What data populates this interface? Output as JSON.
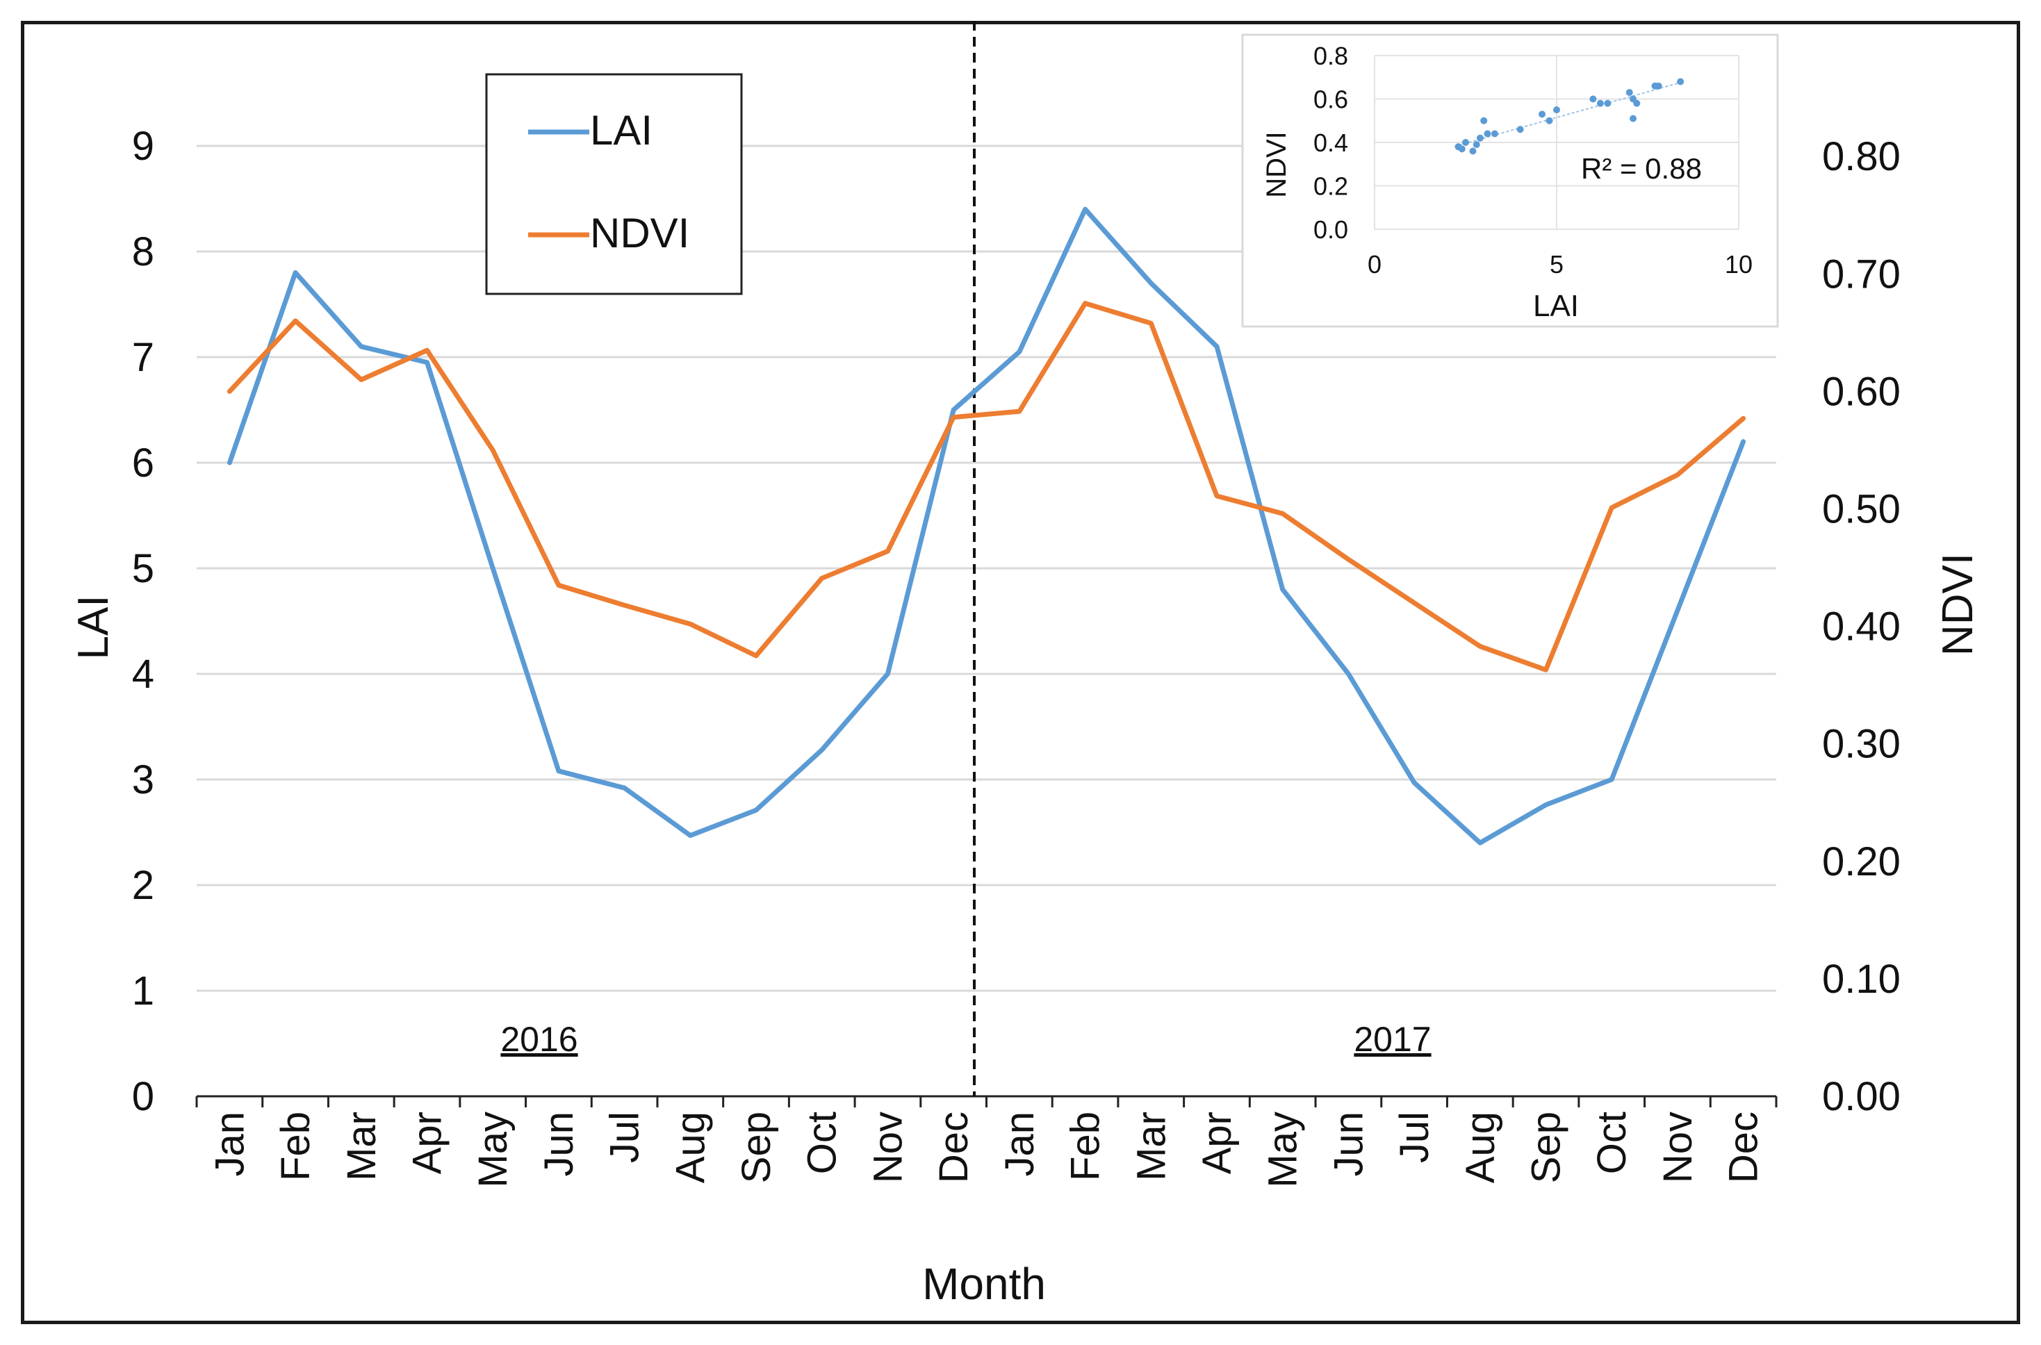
{
  "chart_data": {
    "type": "line",
    "xlabel": "Month",
    "ylabel_left": "LAI",
    "ylabel_right": "NDVI",
    "y_left_lim": [
      0,
      9
    ],
    "y_left_ticks": [
      "0",
      "1",
      "2",
      "3",
      "4",
      "5",
      "6",
      "7",
      "8",
      "9"
    ],
    "y_right_lim": [
      0.0,
      0.8
    ],
    "y_right_ticks": [
      "0.00",
      "0.10",
      "0.20",
      "0.30",
      "0.40",
      "0.50",
      "0.60",
      "0.70",
      "0.80"
    ],
    "categories": [
      "Jan",
      "Feb",
      "Mar",
      "Apr",
      "May",
      "Jun",
      "Jul",
      "Aug",
      "Sep",
      "Oct",
      "Nov",
      "Dec",
      "Jan",
      "Feb",
      "Mar",
      "Apr",
      "May",
      "Jun",
      "Jul",
      "Aug",
      "Sep",
      "Oct",
      "Nov",
      "Dec"
    ],
    "year_labels": [
      "2016",
      "2017"
    ],
    "grid": true,
    "series": [
      {
        "name": "LAI",
        "axis": "left",
        "color": "#5B9BD5",
        "values": [
          6.0,
          7.8,
          7.1,
          6.95,
          5.0,
          3.08,
          2.92,
          2.47,
          2.71,
          3.28,
          4.0,
          6.5,
          7.05,
          8.4,
          7.7,
          7.1,
          4.8,
          4.0,
          2.97,
          2.4,
          2.76,
          3.0,
          4.6,
          6.2
        ]
      },
      {
        "name": "NDVI",
        "axis": "right",
        "color": "#ED7D31",
        "values": [
          0.6,
          0.66,
          0.61,
          0.635,
          0.55,
          0.435,
          0.418,
          0.402,
          0.375,
          0.441,
          0.464,
          0.578,
          0.583,
          0.675,
          0.658,
          0.511,
          0.496,
          0.457,
          0.42,
          0.383,
          0.363,
          0.501,
          0.529,
          0.577
        ]
      }
    ],
    "divider_after_index": 11,
    "legend": {
      "position": "top-left"
    },
    "inset": {
      "type": "scatter",
      "xlabel": "LAI",
      "ylabel": "NDVI",
      "xlim": [
        0,
        10
      ],
      "ylim": [
        0.0,
        0.8
      ],
      "x_ticks": [
        "0",
        "5",
        "10"
      ],
      "y_ticks": [
        "0.0",
        "0.2",
        "0.4",
        "0.6",
        "0.8"
      ],
      "annotation": "R² = 0.88",
      "color": "#5B9BD5",
      "trendline": {
        "slope": 0.0474,
        "intercept": 0.2776
      },
      "points": [
        [
          2.3,
          0.38
        ],
        [
          2.5,
          0.4
        ],
        [
          2.4,
          0.37
        ],
        [
          2.7,
          0.36
        ],
        [
          2.8,
          0.39
        ],
        [
          2.9,
          0.42
        ],
        [
          3.0,
          0.5
        ],
        [
          3.1,
          0.44
        ],
        [
          3.3,
          0.44
        ],
        [
          4.0,
          0.46
        ],
        [
          4.6,
          0.53
        ],
        [
          4.8,
          0.5
        ],
        [
          5.0,
          0.55
        ],
        [
          6.0,
          0.6
        ],
        [
          6.2,
          0.58
        ],
        [
          6.4,
          0.58
        ],
        [
          7.0,
          0.63
        ],
        [
          7.1,
          0.6
        ],
        [
          7.2,
          0.58
        ],
        [
          7.1,
          0.51
        ],
        [
          7.7,
          0.66
        ],
        [
          7.8,
          0.66
        ],
        [
          8.4,
          0.68
        ]
      ]
    }
  }
}
